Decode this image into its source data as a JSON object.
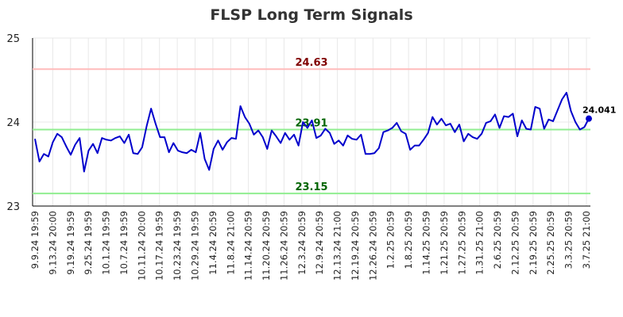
{
  "chart_data": {
    "type": "line",
    "title": "FLSP Long Term Signals",
    "xlabel": "",
    "ylabel": "",
    "ylim": [
      23,
      25
    ],
    "y_ticks": [
      "23",
      "24",
      "25"
    ],
    "x_tick_labels": [
      "9.9.24 19:59",
      "9.13.24 20:00",
      "9.19.24 19:59",
      "9.25.24 19:59",
      "10.1.24 19:59",
      "10.7.24 19:59",
      "10.11.24 20:00",
      "10.17.24 19:59",
      "10.23.24 19:59",
      "10.29.24 19:59",
      "11.4.24 20:59",
      "11.8.24 21:00",
      "11.14.24 20:59",
      "11.20.24 20:59",
      "11.26.24 20:59",
      "12.3.24 20:59",
      "12.9.24 20:59",
      "12.13.24 21:00",
      "12.19.24 20:59",
      "12.26.24 20:59",
      "1.2.25 20:59",
      "1.8.25 20:59",
      "1.14.25 20:59",
      "1.21.25 20:59",
      "1.27.25 20:59",
      "1.31.25 21:00",
      "2.6.25 20:59",
      "2.12.25 20:59",
      "2.19.25 20:59",
      "2.25.25 20:59",
      "3.3.25 20:59",
      "3.7.25 21:00"
    ],
    "grid": true,
    "series": [
      {
        "color": "#0000cc",
        "values": [
          23.8,
          23.53,
          23.62,
          23.59,
          23.76,
          23.86,
          23.82,
          23.71,
          23.61,
          23.73,
          23.81,
          23.41,
          23.66,
          23.74,
          23.63,
          23.81,
          23.79,
          23.78,
          23.81,
          23.83,
          23.75,
          23.85,
          23.63,
          23.62,
          23.7,
          23.95,
          24.16,
          23.98,
          23.82,
          23.82,
          23.64,
          23.75,
          23.66,
          23.64,
          23.63,
          23.67,
          23.64,
          23.87,
          23.56,
          23.43,
          23.68,
          23.78,
          23.67,
          23.76,
          23.81,
          23.8,
          24.19,
          24.06,
          23.98,
          23.85,
          23.9,
          23.82,
          23.68,
          23.9,
          23.83,
          23.75,
          23.87,
          23.79,
          23.85,
          23.72,
          24.0,
          23.93,
          24.02,
          23.81,
          23.84,
          23.92,
          23.87,
          23.74,
          23.78,
          23.72,
          23.84,
          23.8,
          23.79,
          23.85,
          23.62,
          23.62,
          23.63,
          23.69,
          23.88,
          23.9,
          23.93,
          23.99,
          23.89,
          23.86,
          23.67,
          23.72,
          23.72,
          23.79,
          23.87,
          24.06,
          23.97,
          24.04,
          23.96,
          23.98,
          23.88,
          23.97,
          23.77,
          23.86,
          23.82,
          23.8,
          23.86,
          23.99,
          24.01,
          24.09,
          23.93,
          24.07,
          24.06,
          24.1,
          23.83,
          24.02,
          23.92,
          23.91,
          24.18,
          24.16,
          23.92,
          24.03,
          24.01,
          24.14,
          24.27,
          24.35,
          24.13,
          24.0,
          23.91,
          23.94,
          24.041
        ],
        "last_label": "24.041"
      }
    ],
    "reference_lines": [
      {
        "value": 24.63,
        "label": "24.63",
        "line_color": "#ffbbbb",
        "label_color": "#800000"
      },
      {
        "value": 23.91,
        "label": "23.91",
        "line_color": "#90ee90",
        "label_color": "#006400"
      },
      {
        "value": 23.15,
        "label": "23.15",
        "line_color": "#90ee90",
        "label_color": "#006400"
      }
    ]
  }
}
